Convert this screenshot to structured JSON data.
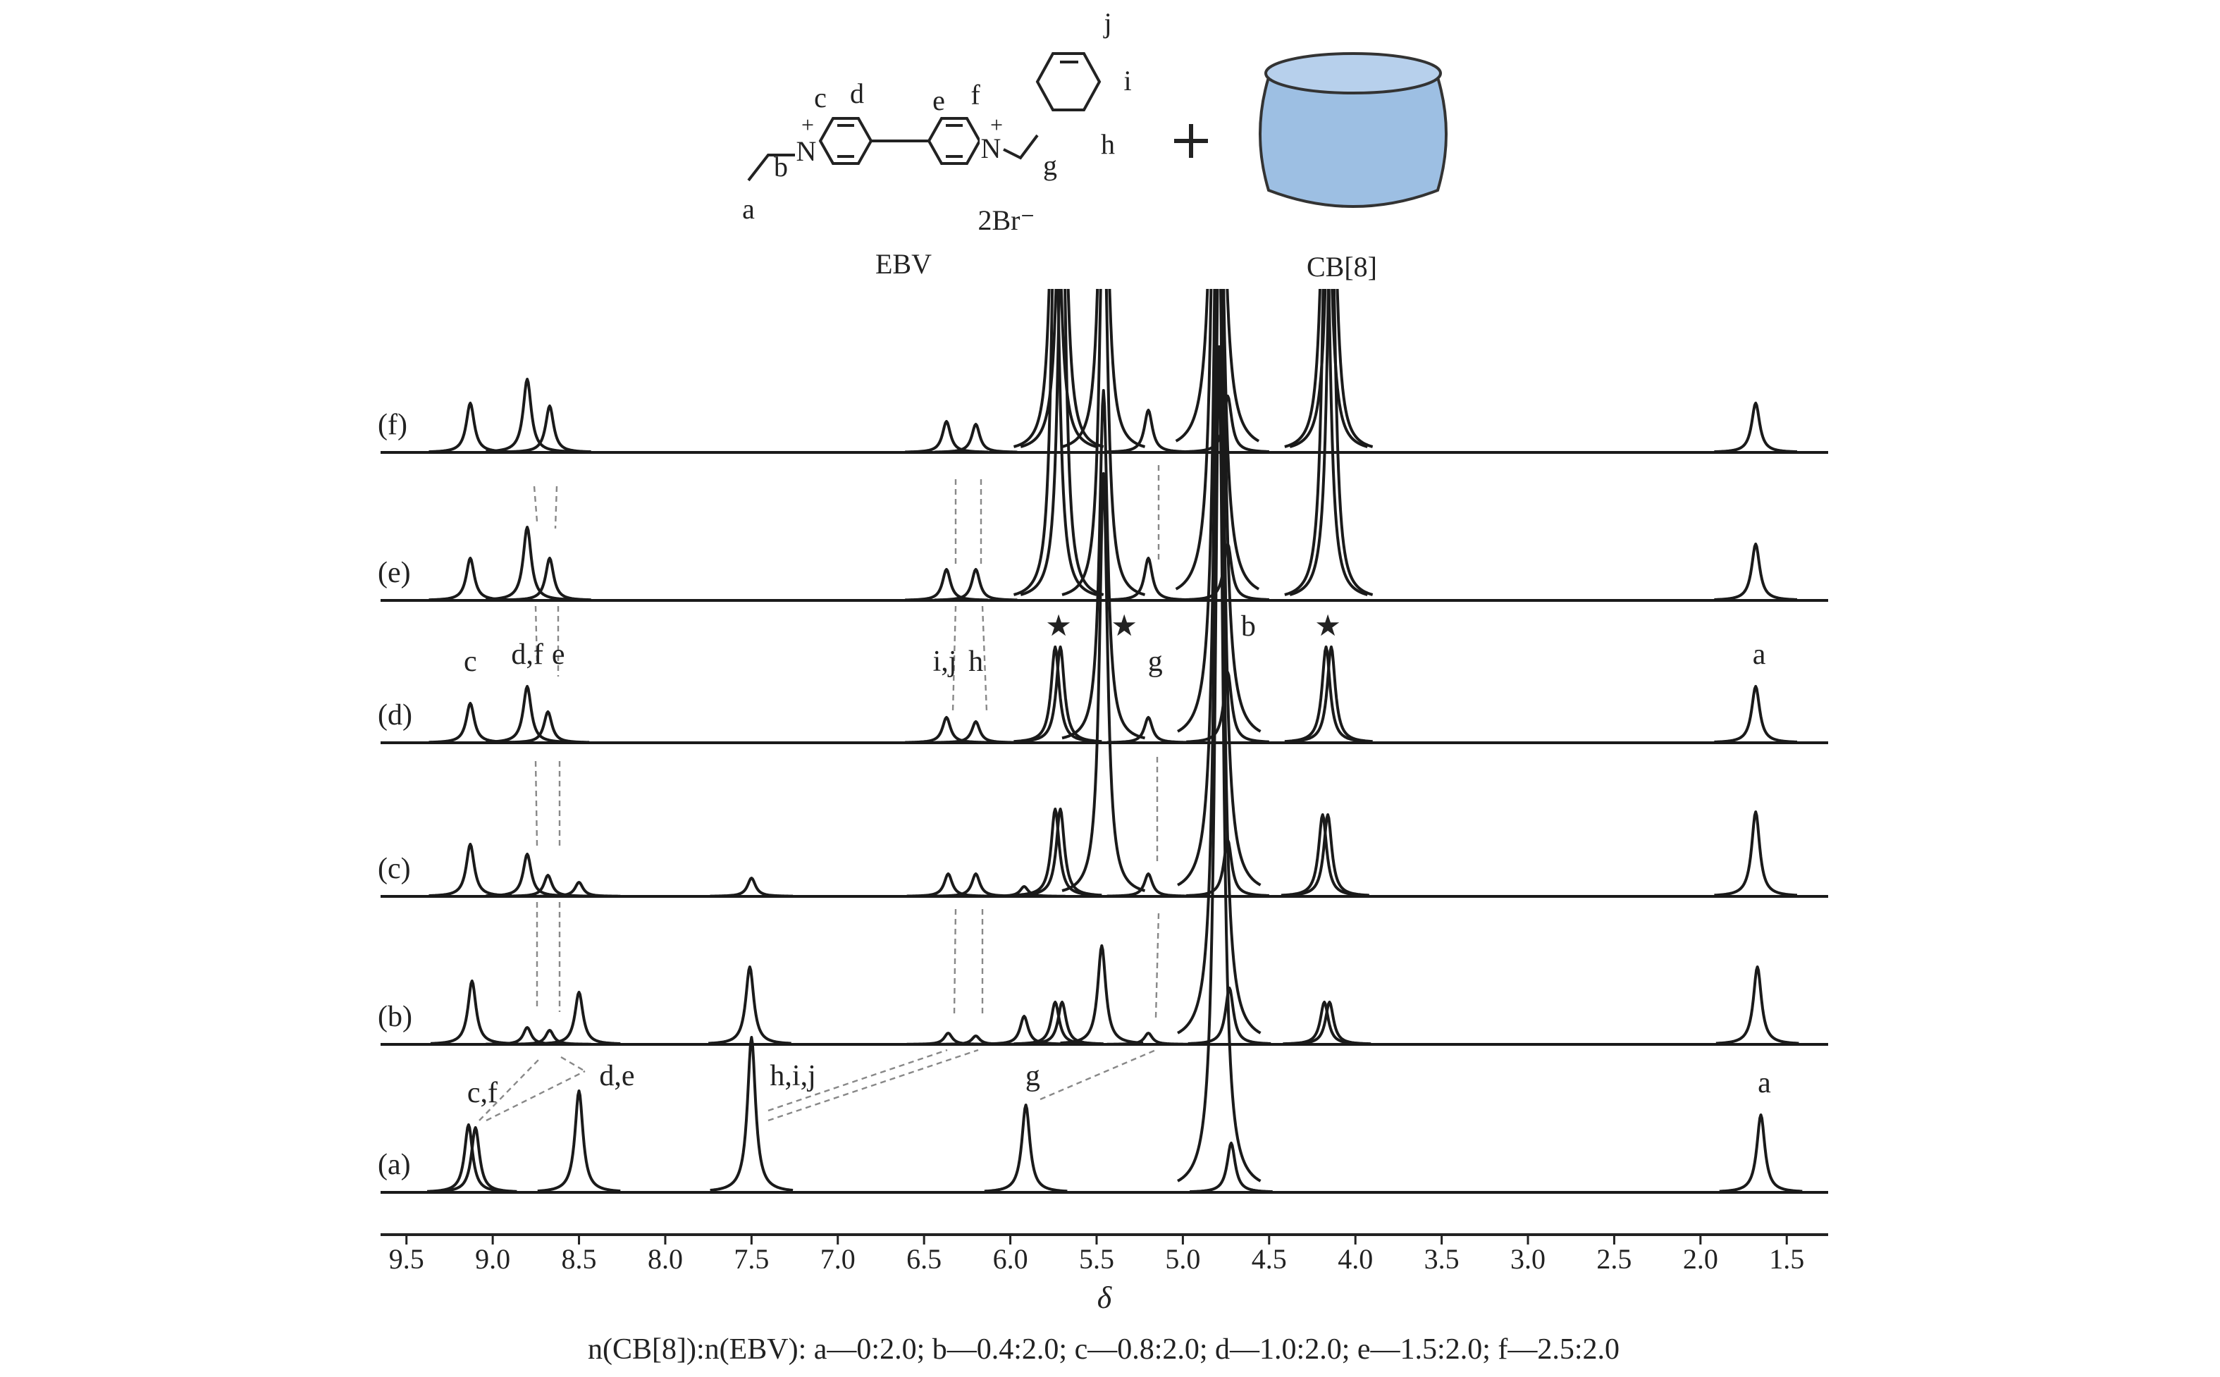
{
  "scheme": {
    "atom_labels": [
      "a",
      "b",
      "c",
      "d",
      "e",
      "f",
      "g",
      "h",
      "i",
      "j"
    ],
    "nitrogen": "N",
    "charge": "+",
    "counterion": "2Br⁻",
    "guest": "EBV",
    "host": "CB[8]"
  },
  "chart_data": {
    "type": "nmr-stack",
    "xlabel": "δ",
    "caption": "n(CB[8]):n(EBV): a—0:2.0; b—0.4:2.0; c—0.8:2.0; d—1.0:2.0; e—1.5:2.0; f—2.5:2.0",
    "xlim": [
      9.65,
      1.26
    ],
    "xticks": [
      9.5,
      {
        "value": 9,
        "label": "9.0"
      },
      8.5,
      {
        "value": 8,
        "label": "8.0"
      },
      7.5,
      {
        "value": 7,
        "label": "7.0"
      },
      6.5,
      {
        "value": 6,
        "label": "6.0"
      },
      5.5,
      {
        "value": 5,
        "label": "5.0"
      },
      4.5,
      {
        "value": 4,
        "label": "4.0"
      },
      3.5,
      {
        "value": 3,
        "label": "3.0"
      },
      2.5,
      {
        "value": 2,
        "label": "2.0"
      },
      1.5
    ],
    "color": "#1a1a1a",
    "spectra": [
      {
        "name": "(a)",
        "positions": [
          9.14,
          9.1,
          8.5,
          7.5,
          5.91,
          4.79,
          4.72,
          1.65
        ],
        "heights": [
          48,
          46,
          72,
          110,
          62,
          600,
          35,
          55
        ],
        "annotations": [
          {
            "text": "c,f",
            "x": 9.06
          },
          {
            "text": "d,e",
            "x": 8.28
          },
          {
            "text": "h,i,j",
            "x": 7.26
          },
          {
            "text": "g",
            "x": 5.87
          },
          {
            "text": "a",
            "x": 1.63
          }
        ]
      },
      {
        "name": "(b)",
        "positions": [
          9.12,
          8.8,
          8.67,
          8.5,
          7.51,
          6.36,
          6.2,
          5.92,
          5.74,
          5.7,
          5.47,
          5.2,
          4.79,
          4.73,
          4.18,
          4.15,
          1.67
        ],
        "heights": [
          45,
          12,
          10,
          37,
          55,
          8,
          6,
          20,
          30,
          30,
          70,
          8,
          600,
          40,
          30,
          30,
          55
        ],
        "annotations": []
      },
      {
        "name": "(c)",
        "positions": [
          9.13,
          8.8,
          8.68,
          8.5,
          7.5,
          6.36,
          6.2,
          5.92,
          5.74,
          5.71,
          5.46,
          5.2,
          4.79,
          4.74,
          4.19,
          4.16,
          1.68
        ],
        "heights": [
          37,
          30,
          15,
          10,
          13,
          16,
          16,
          7,
          62,
          62,
          300,
          16,
          600,
          40,
          58,
          58,
          60
        ],
        "annotations": []
      },
      {
        "name": "(d)",
        "positions": [
          9.13,
          8.8,
          8.68,
          6.37,
          6.2,
          5.74,
          5.71,
          5.46,
          5.2,
          4.79,
          4.74,
          4.17,
          4.14,
          1.68
        ],
        "heights": [
          28,
          40,
          22,
          18,
          15,
          68,
          68,
          250,
          18,
          600,
          50,
          68,
          68,
          40
        ],
        "annotations": [
          {
            "text": "c",
            "x": 9.13
          },
          {
            "text": "d,f",
            "x": 8.8
          },
          {
            "text": "e",
            "x": 8.62
          },
          {
            "text": "i,j",
            "x": 6.38
          },
          {
            "text": "h",
            "x": 6.2
          },
          {
            "text": "★",
            "x": 5.72
          },
          {
            "text": "★",
            "x": 5.34
          },
          {
            "text": "g",
            "x": 5.16
          },
          {
            "text": "b",
            "x": 4.62
          },
          {
            "text": "★",
            "x": 4.16
          },
          {
            "text": "a",
            "x": 1.66
          }
        ]
      },
      {
        "name": "(e)",
        "positions": [
          9.13,
          8.8,
          8.67,
          6.37,
          6.2,
          5.74,
          5.7,
          5.46,
          5.2,
          4.8,
          4.74,
          4.17,
          4.14,
          1.68
        ],
        "heights": [
          30,
          52,
          30,
          22,
          22,
          300,
          300,
          300,
          30,
          600,
          40,
          300,
          300,
          40
        ],
        "annotations": []
      },
      {
        "name": "(f)",
        "positions": [
          9.13,
          8.8,
          8.67,
          6.37,
          6.2,
          5.74,
          5.7,
          5.46,
          5.2,
          4.8,
          4.74,
          4.17,
          4.14,
          1.68
        ],
        "heights": [
          35,
          52,
          33,
          22,
          20,
          300,
          300,
          300,
          30,
          600,
          40,
          300,
          300,
          35
        ],
        "annotations": []
      }
    ]
  }
}
